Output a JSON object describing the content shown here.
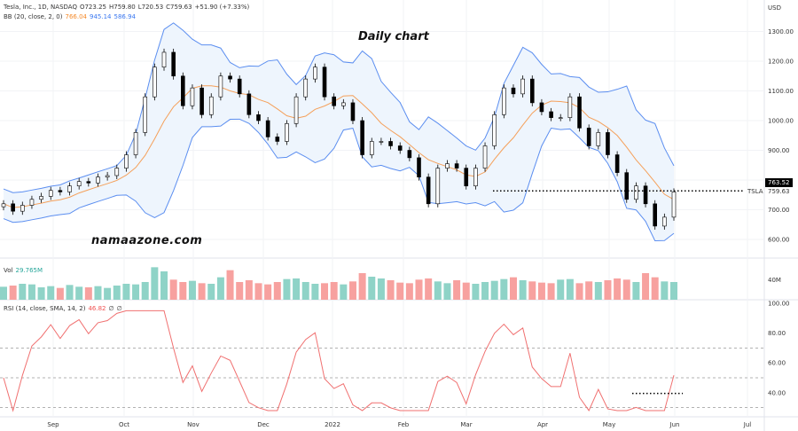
{
  "header": {
    "symbol": "Tesla, Inc., 1D, NASDAQ",
    "open": "O723.25",
    "high": "H759.80",
    "low": "L720.53",
    "close": "C759.63",
    "change": "+51.90 (+7.33%)"
  },
  "bb_legend": {
    "label": "BB (20, close, 2, 0)",
    "basis": "766.04",
    "upper": "945.14",
    "lower": "586.94"
  },
  "vol_legend": {
    "label": "Vol",
    "value": "29.765M"
  },
  "rsi_legend": {
    "label": "RSI (14, close, SMA, 14, 2)",
    "value": "46.82",
    "v2": "∅",
    "v3": "∅"
  },
  "annotations": {
    "title": "Daily chart",
    "watermark": "namaazone.com",
    "line_label": "TSLA"
  },
  "colors": {
    "up": "#ffffff",
    "down": "#000000",
    "bb_basis": "#f5a05a",
    "bb_band": "#5b8ef0",
    "bb_fill": "#eef5fd",
    "vol_up": "#8fd3c7",
    "vol_down": "#f7a19f",
    "rsi": "#f07070"
  },
  "chart_data": {
    "type": "candlestick",
    "currency": "USD",
    "price_ticks": [
      "1300.00",
      "1200.00",
      "1100.00",
      "1000.00",
      "900.00",
      "800.00",
      "700.00",
      "600.00"
    ],
    "price_tag": "763.52",
    "last_price": "759.63",
    "hline_price": 763.52,
    "x_ticks": [
      "Sep",
      "Oct",
      "Nov",
      "Dec",
      "2022",
      "Feb",
      "Mar",
      "Apr",
      "May",
      "Jun",
      "Jul"
    ],
    "closes": [
      720,
      695,
      715,
      735,
      745,
      765,
      760,
      780,
      795,
      790,
      810,
      815,
      840,
      885,
      960,
      1080,
      1180,
      1230,
      1150,
      1050,
      1110,
      1020,
      1080,
      1150,
      1140,
      1090,
      1020,
      1000,
      945,
      930,
      990,
      1080,
      1140,
      1180,
      1080,
      1050,
      1060,
      1000,
      885,
      930,
      930,
      915,
      900,
      875,
      810,
      720,
      840,
      855,
      840,
      780,
      840,
      915,
      1020,
      1110,
      1090,
      1140,
      1060,
      1030,
      1010,
      1010,
      1080,
      975,
      915,
      960,
      885,
      825,
      735,
      780,
      720,
      645,
      675,
      760
    ],
    "volume_m": [
      22,
      24,
      27,
      26,
      21,
      23,
      20,
      25,
      22,
      21,
      23,
      20,
      24,
      27,
      26,
      30,
      55,
      48,
      34,
      30,
      32,
      28,
      27,
      38,
      50,
      30,
      33,
      28,
      26,
      30,
      35,
      36,
      30,
      27,
      28,
      30,
      26,
      31,
      45,
      39,
      36,
      33,
      29,
      28,
      34,
      36,
      31,
      28,
      33,
      29,
      27,
      30,
      32,
      35,
      38,
      33,
      31,
      29,
      28,
      34,
      35,
      28,
      31,
      30,
      33,
      36,
      34,
      30,
      45,
      38,
      31,
      30
    ],
    "rsi_ticks": [
      "100.00",
      "80.00",
      "60.00",
      "40.00"
    ],
    "rsi_levels": [
      70,
      50,
      30
    ],
    "rsi_hline": 39.5,
    "volume_tick": "40M"
  }
}
